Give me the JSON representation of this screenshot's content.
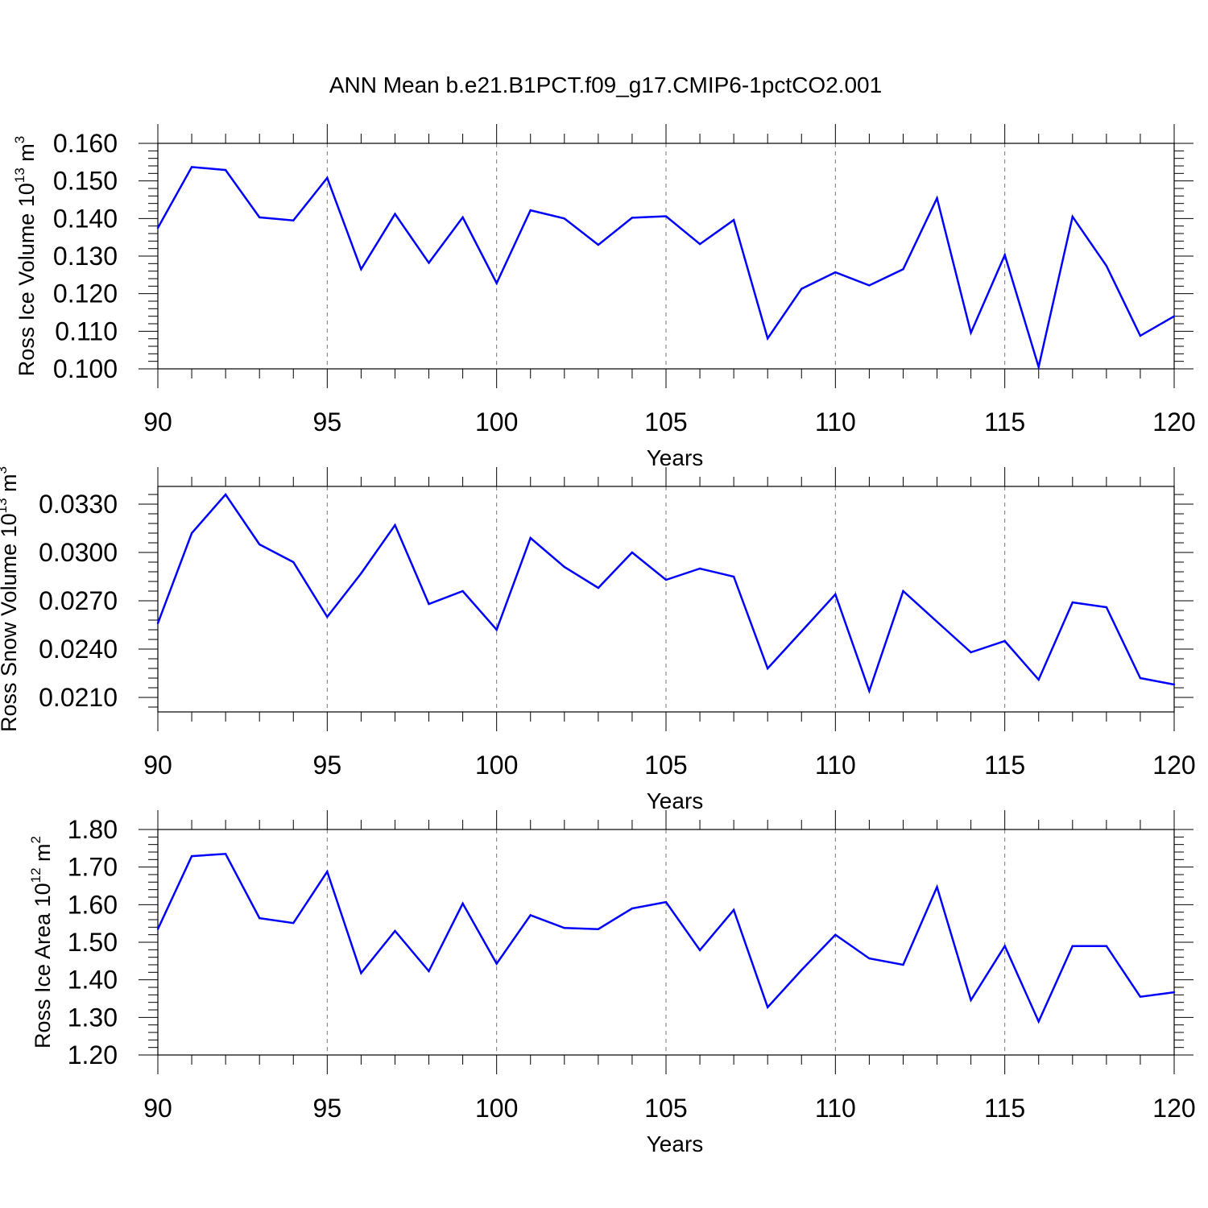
{
  "title": "ANN Mean b.e21.B1PCT.f09_g17.CMIP6-1pctCO2.001",
  "line_color": "#0000ff",
  "chart_data": [
    {
      "type": "line",
      "xlabel": "Years",
      "ylabel": {
        "base": "Ross Ice Volume 10",
        "exp": "13",
        "unit": " m",
        "unit_exp": "3"
      },
      "xlim": [
        90,
        120
      ],
      "ylim": [
        0.1,
        0.16
      ],
      "x_ticks": [
        90,
        95,
        100,
        105,
        110,
        115,
        120
      ],
      "y_ticks": [
        0.1,
        0.11,
        0.12,
        0.13,
        0.14,
        0.15,
        0.16
      ],
      "y_tick_labels": [
        "0.100",
        "0.110",
        "0.120",
        "0.130",
        "0.140",
        "0.150",
        "0.160"
      ],
      "x": [
        90,
        91,
        92,
        93,
        94,
        95,
        96,
        97,
        98,
        99,
        100,
        101,
        102,
        103,
        104,
        105,
        106,
        107,
        108,
        109,
        110,
        111,
        112,
        113,
        114,
        115,
        116,
        117,
        118,
        119,
        120
      ],
      "values": [
        0.1375,
        0.1537,
        0.1529,
        0.1403,
        0.1395,
        0.1508,
        0.1265,
        0.1412,
        0.1282,
        0.1403,
        0.1228,
        0.1422,
        0.14,
        0.133,
        0.1402,
        0.1406,
        0.1332,
        0.1396,
        0.1081,
        0.1213,
        0.1257,
        0.1222,
        0.1265,
        0.1454,
        0.1096,
        0.1303,
        0.1005,
        0.1405,
        0.1274,
        0.1088,
        0.114
      ]
    },
    {
      "type": "line",
      "xlabel": "Years",
      "ylabel": {
        "base": "Ross Snow Volume 10",
        "exp": "13",
        "unit": " m",
        "unit_exp": "3"
      },
      "xlim": [
        90,
        120
      ],
      "ylim": [
        0.0201,
        0.0341
      ],
      "x_ticks": [
        90,
        95,
        100,
        105,
        110,
        115,
        120
      ],
      "y_ticks": [
        0.021,
        0.024,
        0.027,
        0.03,
        0.033
      ],
      "y_tick_labels": [
        "0.0210",
        "0.0240",
        "0.0270",
        "0.0300",
        "0.0330"
      ],
      "x": [
        90,
        91,
        92,
        93,
        94,
        95,
        96,
        97,
        98,
        99,
        100,
        101,
        102,
        103,
        104,
        105,
        106,
        107,
        108,
        109,
        110,
        111,
        112,
        113,
        114,
        115,
        116,
        117,
        118,
        119,
        120
      ],
      "values": [
        0.0256,
        0.0312,
        0.0336,
        0.0305,
        0.0294,
        0.026,
        0.0287,
        0.0317,
        0.0268,
        0.0276,
        0.0252,
        0.0309,
        0.0291,
        0.0278,
        0.03,
        0.0283,
        0.029,
        0.0285,
        0.0228,
        0.0251,
        0.0274,
        0.0214,
        0.0276,
        0.0257,
        0.0238,
        0.0245,
        0.0221,
        0.0269,
        0.0266,
        0.0222,
        0.0218
      ]
    },
    {
      "type": "line",
      "xlabel": "Years",
      "ylabel": {
        "base": "Ross Ice Area 10",
        "exp": "12",
        "unit": " m",
        "unit_exp": "2"
      },
      "xlim": [
        90,
        120
      ],
      "ylim": [
        1.2,
        1.8
      ],
      "x_ticks": [
        90,
        95,
        100,
        105,
        110,
        115,
        120
      ],
      "y_ticks": [
        1.2,
        1.3,
        1.4,
        1.5,
        1.6,
        1.7,
        1.8
      ],
      "y_tick_labels": [
        "1.20",
        "1.30",
        "1.40",
        "1.50",
        "1.60",
        "1.70",
        "1.80"
      ],
      "x": [
        90,
        91,
        92,
        93,
        94,
        95,
        96,
        97,
        98,
        99,
        100,
        101,
        102,
        103,
        104,
        105,
        106,
        107,
        108,
        109,
        110,
        111,
        112,
        113,
        114,
        115,
        116,
        117,
        118,
        119,
        120
      ],
      "values": [
        1.535,
        1.729,
        1.735,
        1.564,
        1.551,
        1.688,
        1.418,
        1.53,
        1.423,
        1.603,
        1.443,
        1.572,
        1.538,
        1.535,
        1.59,
        1.607,
        1.479,
        1.586,
        1.327,
        1.426,
        1.52,
        1.457,
        1.44,
        1.647,
        1.346,
        1.49,
        1.289,
        1.49,
        1.49,
        1.355,
        1.367
      ]
    }
  ]
}
